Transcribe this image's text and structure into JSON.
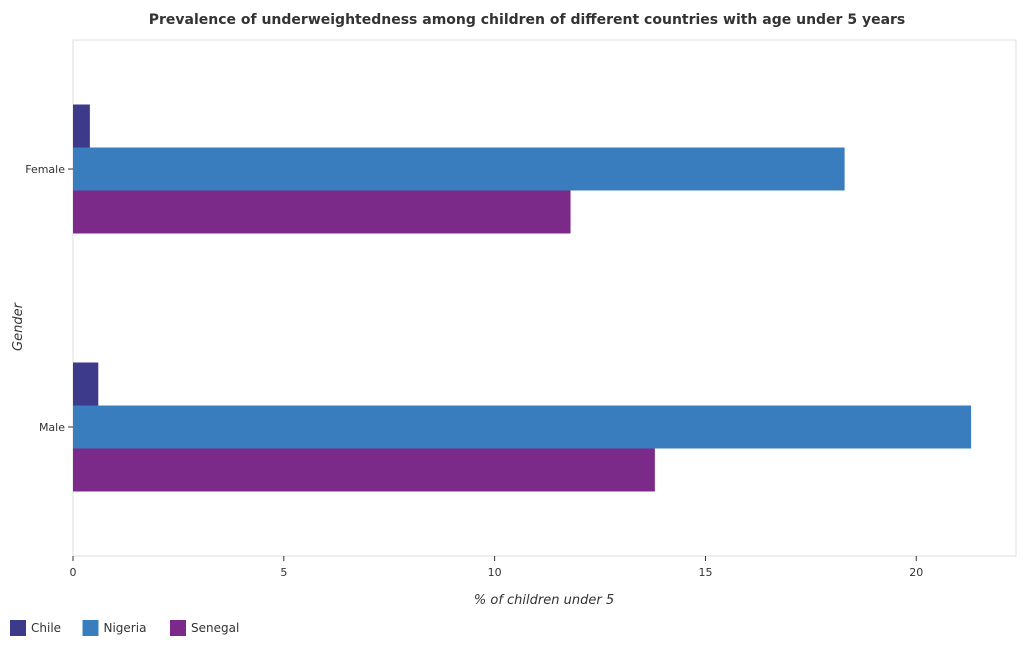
{
  "chart_data": {
    "type": "bar",
    "orientation": "horizontal",
    "title": "Prevalence of underweightedness among children of different countries with age under 5 years",
    "xlabel": "% of children under 5",
    "ylabel": "Gender",
    "categories": [
      "Female",
      "Male"
    ],
    "series": [
      {
        "name": "Chile",
        "color": "#3d3a8c",
        "values": [
          0.4,
          0.6
        ]
      },
      {
        "name": "Nigeria",
        "color": "#3a7dbf",
        "values": [
          18.3,
          21.3
        ]
      },
      {
        "name": "Senegal",
        "color": "#7c2a8a",
        "values": [
          11.8,
          13.8
        ]
      }
    ],
    "xlim": [
      0,
      22.365
    ],
    "xticks": [
      0,
      5,
      10,
      15,
      20
    ],
    "grid": false,
    "legend_position": "bottom-left"
  }
}
